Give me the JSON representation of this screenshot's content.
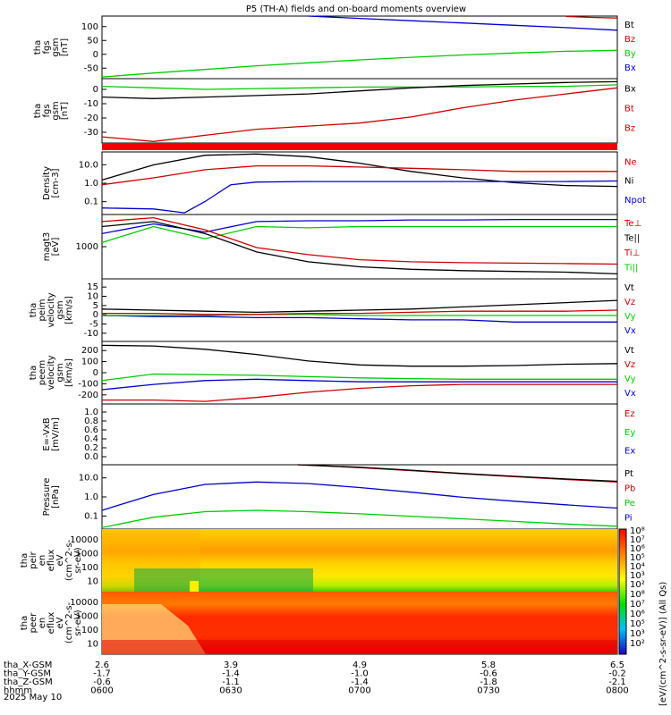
{
  "title": "P5 (TH-A) fields and on-board moments overview",
  "date_label": "2025 May 10",
  "colorbar": {
    "ticks": [
      "10⁸",
      "10⁷",
      "10⁶",
      "10⁵",
      "10⁴",
      "10³",
      "10²"
    ],
    "ticks2": [
      "10⁸",
      "10⁷",
      "10⁶",
      "10⁵",
      "10³",
      "10²"
    ],
    "unit": "[eV/(cm^2-s-sr-eV)] (All Qs)"
  },
  "ephemeris": {
    "row_labels": [
      "tha_X-GSM",
      "tha_Y-GSM",
      "tha_Z-GSM",
      "hhmm"
    ],
    "columns": [
      {
        "values": [
          "2.6",
          "-1.7",
          "-0.6",
          "0600"
        ]
      },
      {
        "values": [
          "3.9",
          "-1.4",
          "-1.1",
          "0630"
        ]
      },
      {
        "values": [
          "4.9",
          "-1.0",
          "-1.4",
          "0700"
        ]
      },
      {
        "values": [
          "5.8",
          "-0.6",
          "-1.8",
          "0730"
        ]
      },
      {
        "values": [
          "6.5",
          "-0.2",
          "-2.1",
          "0800"
        ]
      }
    ]
  },
  "chart_data": [
    {
      "type": "line",
      "ylabel": [
        "tha",
        "fgs",
        "gsm",
        "[nT]"
      ],
      "yticks": [
        "100",
        "50",
        "0",
        "-50"
      ],
      "legend": [
        {
          "name": "Bt",
          "color": "#000000"
        },
        {
          "name": "Bz",
          "color": "#cc0000"
        },
        {
          "name": "By",
          "color": "#00cc00"
        },
        {
          "name": "Bx",
          "color": "#0000cc"
        }
      ],
      "ylim": [
        -85,
        105
      ],
      "series": [
        {
          "name": "By",
          "color": "#00cc00",
          "x": [
            0,
            0.1,
            0.2,
            0.3,
            0.4,
            0.5,
            0.6,
            0.7,
            0.8,
            0.9,
            1
          ],
          "y": [
            -80,
            -68,
            -57,
            -46,
            -37,
            -28,
            -20,
            -13,
            -7,
            -2,
            1
          ]
        },
        {
          "name": "Bx",
          "color": "#0000cc",
          "x": [
            0.4,
            0.5,
            0.6,
            0.7,
            0.8,
            0.9,
            1
          ],
          "y": [
            105,
            98,
            91,
            84,
            77,
            70,
            62
          ]
        },
        {
          "name": "Bz",
          "color": "#cc0000",
          "x": [
            0.9,
            0.95,
            1
          ],
          "y": [
            104,
            101,
            99
          ]
        }
      ]
    },
    {
      "type": "line",
      "ylabel": [
        "tha",
        "fgs",
        "gsm",
        "[nT]"
      ],
      "yticks": [
        "0",
        "-10",
        "-20",
        "-30"
      ],
      "legend": [
        {
          "name": "Bx",
          "color": "#000000"
        },
        {
          "name": "Bt",
          "color": "#cc0000"
        },
        {
          "name": "Bz",
          "color": "#cc0000"
        }
      ],
      "ylim": [
        -37,
        5
      ],
      "series": [
        {
          "name": "By",
          "color": "#00cc00",
          "x": [
            0,
            0.1,
            0.2,
            0.3,
            0.4,
            0.5,
            0.6,
            0.7,
            0.8,
            0.9,
            1
          ],
          "y": [
            0,
            -1,
            -2,
            -1.5,
            -1,
            -0.5,
            -0.5,
            -0.5,
            0,
            0,
            1
          ]
        },
        {
          "name": "Bx",
          "color": "#000000",
          "x": [
            0,
            0.1,
            0.2,
            0.3,
            0.4,
            0.5,
            0.6,
            0.7,
            0.8,
            0.9,
            1
          ],
          "y": [
            -7,
            -8,
            -7,
            -6,
            -5,
            -3,
            -1,
            0.5,
            1.5,
            2.5,
            3
          ]
        },
        {
          "name": "Bz",
          "color": "#cc0000",
          "x": [
            0,
            0.1,
            0.2,
            0.3,
            0.4,
            0.5,
            0.6,
            0.7,
            0.8,
            0.9,
            1
          ],
          "y": [
            -33,
            -36,
            -32,
            -28,
            -26,
            -24,
            -20,
            -14,
            -9,
            -5,
            -1
          ]
        }
      ]
    },
    {
      "type": "line",
      "ylabel": [
        "Density",
        "[cm-3]"
      ],
      "yticks": [
        "10.0",
        "1.0",
        "0.1"
      ],
      "legend": [
        {
          "name": "Ne",
          "color": "#cc0000"
        },
        {
          "name": "Ni",
          "color": "#000000"
        },
        {
          "name": "Npot",
          "color": "#0000cc"
        }
      ],
      "scale": "log",
      "ylim": [
        0.05,
        40
      ],
      "series": [
        {
          "name": "Ni",
          "color": "#000000",
          "x": [
            0,
            0.1,
            0.2,
            0.3,
            0.4,
            0.5,
            0.6,
            0.7,
            0.8,
            0.9,
            1
          ],
          "y": [
            2,
            10,
            28,
            32,
            24,
            12,
            5,
            2.5,
            1.5,
            1.1,
            1
          ]
        },
        {
          "name": "Ne",
          "color": "#cc0000",
          "x": [
            0,
            0.1,
            0.2,
            0.3,
            0.4,
            0.5,
            0.6,
            0.7,
            0.8,
            0.9,
            1
          ],
          "y": [
            1.2,
            2.5,
            6,
            9,
            9,
            8,
            7,
            6,
            5,
            5,
            5
          ]
        },
        {
          "name": "Npot",
          "color": "#0000cc",
          "x": [
            0,
            0.1,
            0.16,
            0.2,
            0.25,
            0.3,
            0.4,
            0.5,
            0.6,
            0.7,
            0.8,
            0.9,
            1
          ],
          "y": [
            0.1,
            0.09,
            0.06,
            0.2,
            1.2,
            1.6,
            1.7,
            1.7,
            1.7,
            1.7,
            1.7,
            1.7,
            1.8
          ]
        }
      ]
    },
    {
      "type": "line",
      "ylabel": [
        "magt3",
        "[eV]"
      ],
      "yticks": [
        "1000"
      ],
      "legend": [
        {
          "name": "Te⊥",
          "color": "#cc0000"
        },
        {
          "name": "Te||",
          "color": "#000000"
        },
        {
          "name": "Ti⊥",
          "color": "#cc0000"
        },
        {
          "name": "Ti||",
          "color": "#00cc00"
        }
      ],
      "scale": "log",
      "ylim": [
        150,
        6000
      ],
      "series": [
        {
          "name": "Ti||",
          "color": "#00cc00",
          "x": [
            0,
            0.1,
            0.2,
            0.3,
            0.4,
            0.5,
            0.6,
            0.7,
            0.8,
            0.9,
            1
          ],
          "y": [
            1200,
            3000,
            1500,
            3000,
            2800,
            3000,
            3000,
            3000,
            3000,
            3000,
            3000
          ]
        },
        {
          "name": "Te⊥",
          "color": "#0000cc",
          "x": [
            0,
            0.1,
            0.2,
            0.3,
            0.4,
            0.5,
            0.6,
            0.7,
            0.8,
            0.9,
            1
          ],
          "y": [
            2000,
            3500,
            2200,
            4000,
            4200,
            4200,
            4400,
            4400,
            4500,
            4500,
            4500
          ]
        },
        {
          "name": "Ti⊥",
          "color": "#cc0000",
          "x": [
            0,
            0.1,
            0.2,
            0.3,
            0.4,
            0.5,
            0.6,
            0.7,
            0.8,
            0.9,
            1
          ],
          "y": [
            4000,
            5000,
            2500,
            900,
            600,
            450,
            400,
            380,
            370,
            360,
            350
          ]
        },
        {
          "name": "Te||",
          "color": "#000000",
          "x": [
            0,
            0.1,
            0.2,
            0.3,
            0.4,
            0.5,
            0.6,
            0.7,
            0.8,
            0.9,
            1
          ],
          "y": [
            3000,
            4000,
            2000,
            700,
            400,
            300,
            260,
            240,
            230,
            220,
            200
          ]
        }
      ]
    },
    {
      "type": "line",
      "ylabel": [
        "tha",
        "peim",
        "velocity",
        "gsm",
        "[km/s]"
      ],
      "yticks": [
        "15",
        "10",
        "5",
        "0",
        "-5",
        "-10"
      ],
      "legend": [
        {
          "name": "Vt",
          "color": "#000000"
        },
        {
          "name": "Vz",
          "color": "#cc0000"
        },
        {
          "name": "Vy",
          "color": "#00cc00"
        },
        {
          "name": "Vx",
          "color": "#0000cc"
        }
      ],
      "ylim": [
        -12,
        17
      ],
      "series": [
        {
          "name": "Vx",
          "color": "#0000cc",
          "x": [
            0,
            0.1,
            0.2,
            0.3,
            0.4,
            0.5,
            0.6,
            0.7,
            0.8,
            0.9,
            1
          ],
          "y": [
            0,
            -0.5,
            -0.5,
            -1,
            -1,
            -1.5,
            -2,
            -2,
            -3,
            -3,
            -3
          ]
        },
        {
          "name": "Vy",
          "color": "#00cc00",
          "x": [
            0,
            0.1,
            0.2,
            0.3,
            0.4,
            0.5,
            0.6,
            0.7,
            0.8,
            0.9,
            1
          ],
          "y": [
            0,
            0,
            0,
            0.5,
            0.5,
            0,
            0,
            0,
            0,
            0,
            0
          ]
        },
        {
          "name": "Vz",
          "color": "#cc0000",
          "x": [
            0,
            0.1,
            0.2,
            0.3,
            0.4,
            0.5,
            0.6,
            0.7,
            0.8,
            0.9,
            1
          ],
          "y": [
            1,
            1,
            0.5,
            0.5,
            1,
            1,
            1.5,
            2,
            2,
            2,
            2.5
          ]
        },
        {
          "name": "Vt",
          "color": "#000000",
          "x": [
            0,
            0.1,
            0.2,
            0.3,
            0.4,
            0.5,
            0.6,
            0.7,
            0.8,
            0.9,
            1
          ],
          "y": [
            3,
            2.5,
            2,
            1.5,
            2,
            2.5,
            3,
            4,
            5,
            6,
            7
          ]
        }
      ]
    },
    {
      "type": "line",
      "ylabel": [
        "tha",
        "peem",
        "velocity",
        "gsm",
        "[km/s]"
      ],
      "yticks": [
        "200",
        "100",
        "0",
        "-100",
        "-200"
      ],
      "legend": [
        {
          "name": "Vt",
          "color": "#000000"
        },
        {
          "name": "Vz",
          "color": "#cc0000"
        },
        {
          "name": "Vy",
          "color": "#00cc00"
        },
        {
          "name": "Vx",
          "color": "#0000cc"
        }
      ],
      "ylim": [
        -220,
        260
      ],
      "series": [
        {
          "name": "Vt",
          "color": "#000000",
          "x": [
            0,
            0.1,
            0.2,
            0.3,
            0.4,
            0.5,
            0.6,
            0.7,
            0.8,
            0.9,
            1
          ],
          "y": [
            230,
            225,
            200,
            160,
            110,
            80,
            70,
            70,
            75,
            85,
            90
          ]
        },
        {
          "name": "Vy",
          "color": "#00cc00",
          "x": [
            0,
            0.1,
            0.2,
            0.3,
            0.4,
            0.5,
            0.6,
            0.7,
            0.8,
            0.9,
            1
          ],
          "y": [
            -40,
            10,
            5,
            0,
            -10,
            -20,
            -25,
            -30,
            -30,
            -30,
            -30
          ]
        },
        {
          "name": "Vx",
          "color": "#0000cc",
          "x": [
            0,
            0.1,
            0.2,
            0.3,
            0.4,
            0.5,
            0.6,
            0.7,
            0.8,
            0.9,
            1
          ],
          "y": [
            -110,
            -70,
            -40,
            -30,
            -40,
            -50,
            -50,
            -50,
            -50,
            -50,
            -50
          ]
        },
        {
          "name": "Vz",
          "color": "#cc0000",
          "x": [
            0,
            0.1,
            0.2,
            0.3,
            0.4,
            0.5,
            0.6,
            0.7,
            0.8,
            0.9,
            1
          ],
          "y": [
            -190,
            -190,
            -200,
            -170,
            -130,
            -100,
            -80,
            -70,
            -70,
            -70,
            -70
          ]
        }
      ]
    },
    {
      "type": "line",
      "ylabel": [
        "E=-VxB",
        "[mV/m]"
      ],
      "yticks": [
        "1.0",
        "0.8",
        "0.6",
        "0.4",
        "0.2",
        "0.0"
      ],
      "legend": [
        {
          "name": "Ez",
          "color": "#cc0000"
        },
        {
          "name": "Ey",
          "color": "#00cc00"
        },
        {
          "name": "Ex",
          "color": "#0000cc"
        }
      ],
      "ylim": [
        0,
        1
      ],
      "series": []
    },
    {
      "type": "line",
      "ylabel": [
        "Pressure",
        "[nPa]"
      ],
      "yticks": [
        "10.0",
        "1.0",
        "0.1"
      ],
      "legend": [
        {
          "name": "Pt",
          "color": "#000000"
        },
        {
          "name": "Pb",
          "color": "#cc0000"
        },
        {
          "name": "Pe",
          "color": "#00cc00"
        },
        {
          "name": "Pi",
          "color": "#0000cc"
        }
      ],
      "scale": "log",
      "ylim": [
        0.06,
        40
      ],
      "series": [
        {
          "name": "Pi",
          "color": "#0000cc",
          "x": [
            0,
            0.1,
            0.2,
            0.3,
            0.4,
            0.5,
            0.6,
            0.7,
            0.8,
            0.9,
            1
          ],
          "y": [
            0.4,
            2,
            5.5,
            7,
            6,
            4,
            2.5,
            1.5,
            1,
            0.7,
            0.5
          ]
        },
        {
          "name": "Pe",
          "color": "#00cc00",
          "x": [
            0,
            0.1,
            0.2,
            0.3,
            0.4,
            0.5,
            0.6,
            0.7,
            0.8,
            0.9,
            1
          ],
          "y": [
            0.07,
            0.2,
            0.35,
            0.4,
            0.35,
            0.28,
            0.22,
            0.17,
            0.13,
            0.1,
            0.08
          ]
        },
        {
          "name": "Pb",
          "color": "#cc0000",
          "x": [
            0.38,
            0.5,
            0.6,
            0.7,
            0.8,
            0.9,
            1
          ],
          "y": [
            40,
            30,
            22,
            16,
            12,
            9,
            7
          ]
        },
        {
          "name": "Pt",
          "color": "#000000",
          "x": [
            0.38,
            0.5,
            0.6,
            0.7,
            0.8,
            0.9,
            1
          ],
          "y": [
            40,
            31,
            23,
            16.5,
            12.5,
            9.5,
            7.5
          ]
        }
      ]
    },
    {
      "type": "heatmap",
      "ylabel": [
        "tha",
        "peir",
        "en",
        "eflux",
        "eV",
        "(cm^2-s-",
        "sr-eV)"
      ],
      "yticks": [
        "10000",
        "1000",
        "100",
        "10"
      ]
    },
    {
      "type": "heatmap",
      "ylabel": [
        "tha",
        "peer",
        "en",
        "eflux",
        "eV",
        "(cm^2-s-",
        "sr-eV)"
      ],
      "yticks": [
        "10000",
        "1000",
        "100",
        "10"
      ]
    }
  ]
}
